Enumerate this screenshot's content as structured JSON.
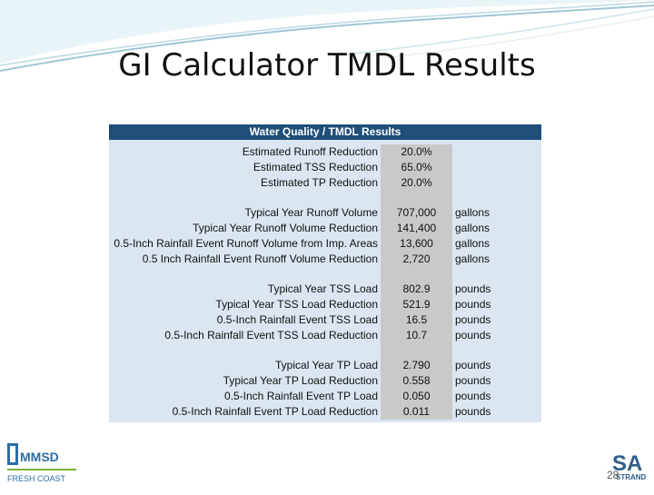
{
  "slide": {
    "title": "GI Calculator TMDL Results",
    "page_number": "28"
  },
  "panel": {
    "heading": "Water Quality / TMDL Results",
    "groups": [
      {
        "rows": [
          {
            "label": "Estimated Runoff Reduction",
            "value": "20.0%",
            "unit": ""
          },
          {
            "label": "Estimated TSS Reduction",
            "value": "65.0%",
            "unit": ""
          },
          {
            "label": "Estimated TP Reduction",
            "value": "20.0%",
            "unit": ""
          }
        ]
      },
      {
        "rows": [
          {
            "label": "Typical Year Runoff Volume",
            "value": "707,000",
            "unit": "gallons"
          },
          {
            "label": "Typical Year Runoff Volume Reduction",
            "value": "141,400",
            "unit": "gallons"
          },
          {
            "label": "0.5-Inch Rainfall Event Runoff Volume from Imp. Areas",
            "value": "13,600",
            "unit": "gallons"
          },
          {
            "label": "0.5 Inch Rainfall Event Runoff Volume Reduction",
            "value": "2,720",
            "unit": "gallons"
          }
        ]
      },
      {
        "rows": [
          {
            "label": "Typical Year TSS Load",
            "value": "802.9",
            "unit": "pounds"
          },
          {
            "label": "Typical Year TSS Load Reduction",
            "value": "521.9",
            "unit": "pounds"
          },
          {
            "label": "0.5-Inch Rainfall Event TSS Load",
            "value": "16.5",
            "unit": "pounds"
          },
          {
            "label": "0.5-Inch Rainfall Event TSS Load Reduction",
            "value": "10.7",
            "unit": "pounds"
          }
        ]
      },
      {
        "rows": [
          {
            "label": "Typical Year TP Load",
            "value": "2.790",
            "unit": "pounds"
          },
          {
            "label": "Typical Year TP Load Reduction",
            "value": "0.558",
            "unit": "pounds"
          },
          {
            "label": "0.5-Inch Rainfall Event TP Load",
            "value": "0.050",
            "unit": "pounds"
          },
          {
            "label": "0.5-Inch Rainfall Event TP Load Reduction",
            "value": "0.011",
            "unit": "pounds"
          }
        ]
      }
    ]
  },
  "logos": {
    "left": "mmsd-fresh-coast-logo",
    "left_text_1": "MMSD",
    "left_text_2": "FRESH COAST",
    "right": "strand-associates-logo",
    "right_text_1": "SA",
    "right_text_2": "STRAND"
  },
  "colors": {
    "header_bg": "#1f4e79",
    "panel_bg": "#dbe6f2",
    "value_bg": "#c9c9c9",
    "wave": "#9fc6d6"
  }
}
